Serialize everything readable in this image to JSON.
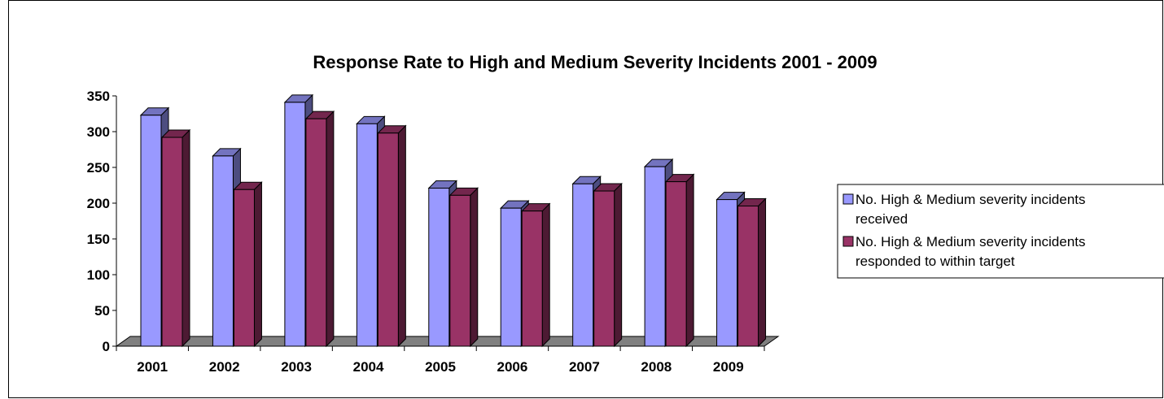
{
  "chart_data": {
    "type": "bar",
    "title": "Response Rate to High and Medium Severity Incidents 2001 - 2009",
    "xlabel": "",
    "ylabel": "",
    "categories": [
      "2001",
      "2002",
      "2003",
      "2004",
      "2005",
      "2006",
      "2007",
      "2008",
      "2009"
    ],
    "series": [
      {
        "name": "No. High & Medium severity incidents received",
        "legend_lines": [
          "No. High & Medium severity incidents",
          "received"
        ],
        "color": "#9999FF",
        "values": [
          323,
          266,
          341,
          311,
          221,
          193,
          227,
          251,
          205
        ]
      },
      {
        "name": "No. High & Medium severity incidents responded to within target",
        "legend_lines": [
          "No. High & Medium severity incidents",
          "responded to within target"
        ],
        "color": "#993366",
        "values": [
          292,
          219,
          318,
          298,
          211,
          189,
          217,
          230,
          196
        ]
      }
    ],
    "ylim": [
      0,
      350
    ],
    "yticks": [
      0,
      50,
      100,
      150,
      200,
      250,
      300,
      350
    ],
    "grid": false,
    "legend_position": "right",
    "floor_color": "#808080",
    "style": "3d-clustered-column"
  }
}
